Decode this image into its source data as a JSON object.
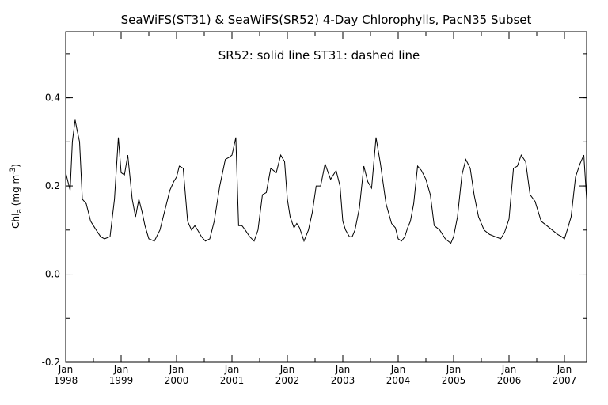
{
  "chart_data": {
    "type": "line",
    "title": "SeaWiFS(ST31) & SeaWiFS(SR52) 4-Day Chlorophylls, PacN35 Subset",
    "annotation": "SR52: solid line   ST31: dashed line",
    "ylabel_main": "Chl",
    "ylabel_sub": "a",
    "ylabel_unit_open": " (mg m",
    "ylabel_unit_sup": "-3",
    "ylabel_unit_close": ")",
    "ylim": [
      -0.2,
      0.55
    ],
    "xlim": [
      1998.0,
      2007.4
    ],
    "y_ticks": [
      {
        "value": -0.2,
        "label": "-0.2"
      },
      {
        "value": 0.0,
        "label": "0.0"
      },
      {
        "value": 0.2,
        "label": "0.2"
      },
      {
        "value": 0.4,
        "label": "0.4"
      }
    ],
    "x_ticks": [
      {
        "value": 1998,
        "month": "Jan",
        "year": "1998"
      },
      {
        "value": 1999,
        "month": "Jan",
        "year": "1999"
      },
      {
        "value": 2000,
        "month": "Jan",
        "year": "2000"
      },
      {
        "value": 2001,
        "month": "Jan",
        "year": "2001"
      },
      {
        "value": 2002,
        "month": "Jan",
        "year": "2002"
      },
      {
        "value": 2003,
        "month": "Jan",
        "year": "2003"
      },
      {
        "value": 2004,
        "month": "Jan",
        "year": "2004"
      },
      {
        "value": 2005,
        "month": "Jan",
        "year": "2005"
      },
      {
        "value": 2006,
        "month": "Jan",
        "year": "2006"
      },
      {
        "value": 2007,
        "month": "Jan",
        "year": "2007"
      }
    ],
    "reference_line": 0.0,
    "grid": false,
    "series": [
      {
        "name": "SR52",
        "style": "solid",
        "color": "#000000",
        "x": [
          1998.0,
          1998.04,
          1998.08,
          1998.12,
          1998.17,
          1998.2,
          1998.25,
          1998.3,
          1998.37,
          1998.45,
          1998.55,
          1998.63,
          1998.7,
          1998.8,
          1998.88,
          1998.95,
          1999.0,
          1999.06,
          1999.12,
          1999.2,
          1999.26,
          1999.32,
          1999.38,
          1999.43,
          1999.5,
          1999.6,
          1999.7,
          1999.8,
          1999.88,
          1999.95,
          2000.0,
          2000.05,
          2000.12,
          2000.2,
          2000.27,
          2000.33,
          2000.38,
          2000.45,
          2000.52,
          2000.6,
          2000.68,
          2000.78,
          2000.88,
          2000.95,
          2001.0,
          2001.07,
          2001.12,
          2001.18,
          2001.24,
          2001.32,
          2001.4,
          2001.47,
          2001.55,
          2001.62,
          2001.7,
          2001.8,
          2001.88,
          2001.95,
          2002.0,
          2002.05,
          2002.12,
          2002.17,
          2002.22,
          2002.3,
          2002.38,
          2002.45,
          2002.52,
          2002.6,
          2002.68,
          2002.78,
          2002.88,
          2002.95,
          2003.0,
          2003.05,
          2003.12,
          2003.17,
          2003.22,
          2003.3,
          2003.38,
          2003.45,
          2003.52,
          2003.6,
          2003.68,
          2003.78,
          2003.88,
          2003.95,
          2004.0,
          2004.06,
          2004.12,
          2004.17,
          2004.22,
          2004.28,
          2004.35,
          2004.42,
          2004.5,
          2004.58,
          2004.65,
          2004.75,
          2004.85,
          2004.95,
          2005.0,
          2005.07,
          2005.15,
          2005.22,
          2005.3,
          2005.37,
          2005.45,
          2005.55,
          2005.65,
          2005.75,
          2005.85,
          2005.92,
          2006.0,
          2006.08,
          2006.15,
          2006.22,
          2006.3,
          2006.38,
          2006.47,
          2006.58,
          2006.68,
          2006.78,
          2006.88,
          2006.95,
          2007.0,
          2007.05,
          2007.12,
          2007.2,
          2007.28,
          2007.35,
          2007.4
        ],
        "values": [
          0.23,
          0.21,
          0.19,
          0.3,
          0.35,
          0.33,
          0.3,
          0.17,
          0.16,
          0.12,
          0.1,
          0.085,
          0.08,
          0.085,
          0.17,
          0.31,
          0.23,
          0.225,
          0.27,
          0.17,
          0.13,
          0.17,
          0.14,
          0.11,
          0.08,
          0.075,
          0.1,
          0.15,
          0.19,
          0.21,
          0.22,
          0.245,
          0.24,
          0.12,
          0.1,
          0.11,
          0.1,
          0.085,
          0.075,
          0.08,
          0.12,
          0.2,
          0.26,
          0.265,
          0.27,
          0.31,
          0.11,
          0.11,
          0.1,
          0.085,
          0.075,
          0.1,
          0.18,
          0.185,
          0.24,
          0.23,
          0.27,
          0.255,
          0.17,
          0.13,
          0.105,
          0.115,
          0.105,
          0.075,
          0.1,
          0.14,
          0.2,
          0.2,
          0.25,
          0.215,
          0.235,
          0.2,
          0.12,
          0.1,
          0.085,
          0.085,
          0.1,
          0.15,
          0.245,
          0.21,
          0.195,
          0.31,
          0.25,
          0.16,
          0.115,
          0.105,
          0.08,
          0.075,
          0.085,
          0.105,
          0.12,
          0.16,
          0.245,
          0.235,
          0.215,
          0.18,
          0.11,
          0.1,
          0.08,
          0.07,
          0.085,
          0.13,
          0.225,
          0.26,
          0.24,
          0.18,
          0.13,
          0.1,
          0.09,
          0.085,
          0.08,
          0.095,
          0.125,
          0.24,
          0.245,
          0.27,
          0.255,
          0.18,
          0.165,
          0.12,
          0.11,
          0.1,
          0.09,
          0.085,
          0.08,
          0.1,
          0.13,
          0.22,
          0.25,
          0.27,
          0.17
        ]
      }
    ]
  }
}
